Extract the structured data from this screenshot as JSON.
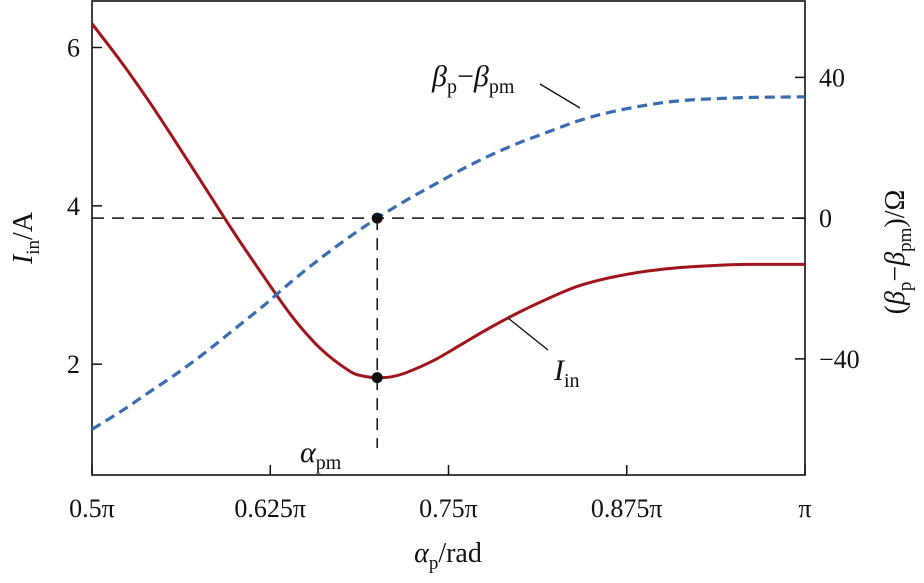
{
  "chart_data": {
    "type": "line",
    "x_label": {
      "symbol": "α",
      "subscript": "p",
      "unit": "/rad"
    },
    "y_left_label": {
      "symbol": "I",
      "subscript": "in",
      "unit": "/A"
    },
    "y_right_label": {
      "open": "(",
      "b1": "β",
      "s1": "p",
      "minus": "−",
      "b2": "β",
      "s2": "pm",
      "close": ")/Ω"
    },
    "x_ticks": [
      "0.5π",
      "0.625π",
      "0.75π",
      "0.875π",
      "π"
    ],
    "x_tick_values": [
      0.5,
      0.625,
      0.75,
      0.875,
      1.0
    ],
    "x_range": [
      0.5,
      1.0
    ],
    "y_left_ticks": [
      "2",
      "4",
      "6"
    ],
    "y_left_tick_values": [
      2,
      4,
      6
    ],
    "y_left_range": [
      0.6,
      6.6
    ],
    "y_right_ticks": [
      "−40",
      "0",
      "40"
    ],
    "y_right_tick_values": [
      -40,
      0,
      40
    ],
    "y_right_range": [
      -73,
      62
    ],
    "series": [
      {
        "name": "I_in",
        "axis": "left",
        "color": "#a0141e",
        "style": "solid",
        "x": [
          0.5,
          0.52,
          0.54,
          0.56,
          0.58,
          0.6,
          0.62,
          0.64,
          0.66,
          0.68,
          0.69,
          0.7,
          0.71,
          0.72,
          0.74,
          0.76,
          0.78,
          0.8,
          0.82,
          0.84,
          0.86,
          0.88,
          0.9,
          0.92,
          0.94,
          0.96,
          0.98,
          1.0
        ],
        "values": [
          6.3,
          5.83,
          5.32,
          4.77,
          4.21,
          3.65,
          3.12,
          2.61,
          2.2,
          1.92,
          1.85,
          1.83,
          1.84,
          1.89,
          2.05,
          2.26,
          2.47,
          2.66,
          2.83,
          2.98,
          3.08,
          3.15,
          3.2,
          3.23,
          3.25,
          3.26,
          3.26,
          3.26
        ]
      },
      {
        "name": "β_p − β_pm",
        "axis": "right",
        "color": "#3a6bb0",
        "style": "dashed",
        "x": [
          0.5,
          0.52,
          0.54,
          0.56,
          0.58,
          0.6,
          0.62,
          0.64,
          0.66,
          0.68,
          0.7,
          0.72,
          0.74,
          0.76,
          0.78,
          0.8,
          0.82,
          0.84,
          0.86,
          0.88,
          0.9,
          0.92,
          0.94,
          0.96,
          0.98,
          1.0
        ],
        "values": [
          -60,
          -55,
          -49.5,
          -44,
          -38,
          -31.5,
          -25,
          -18,
          -11.5,
          -5.5,
          0,
          5,
          9.5,
          14,
          18,
          21.5,
          24.5,
          27.5,
          29.8,
          31.5,
          32.8,
          33.6,
          34,
          34.3,
          34.4,
          34.5
        ]
      }
    ],
    "guides": {
      "x": 0.7,
      "y_right_zero": 0
    },
    "points": [
      {
        "x": 0.7,
        "axis": "right",
        "y": 0
      },
      {
        "x": 0.7,
        "axis": "left",
        "y": 1.83
      }
    ],
    "annotations": {
      "alpha_pm": {
        "symbol": "α",
        "subscript": "pm"
      },
      "beta_label": {
        "b1": "β",
        "s1": "p",
        "minus": "−",
        "b2": "β",
        "s2": "pm"
      },
      "iin_label": {
        "symbol": "I",
        "subscript": "in"
      }
    }
  }
}
